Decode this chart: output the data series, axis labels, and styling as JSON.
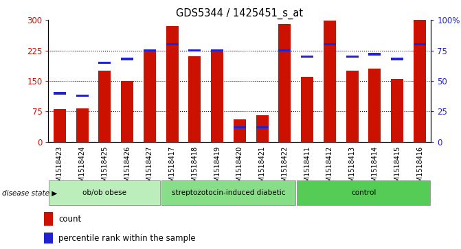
{
  "title": "GDS5344 / 1425451_s_at",
  "samples": [
    "GSM1518423",
    "GSM1518424",
    "GSM1518425",
    "GSM1518426",
    "GSM1518427",
    "GSM1518417",
    "GSM1518418",
    "GSM1518419",
    "GSM1518420",
    "GSM1518421",
    "GSM1518422",
    "GSM1518411",
    "GSM1518412",
    "GSM1518413",
    "GSM1518414",
    "GSM1518415",
    "GSM1518416"
  ],
  "counts": [
    80,
    82,
    175,
    150,
    227,
    285,
    210,
    225,
    55,
    65,
    290,
    160,
    298,
    175,
    180,
    155,
    300
  ],
  "percentiles": [
    40,
    38,
    65,
    68,
    75,
    80,
    75,
    75,
    12,
    12,
    75,
    70,
    80,
    70,
    72,
    68,
    80
  ],
  "groups": [
    {
      "label": "ob/ob obese",
      "start": 0,
      "end": 5,
      "color": "#bbeebb"
    },
    {
      "label": "streptozotocin-induced diabetic",
      "start": 5,
      "end": 11,
      "color": "#88dd88"
    },
    {
      "label": "control",
      "start": 11,
      "end": 17,
      "color": "#55cc55"
    }
  ],
  "bar_color": "#cc1100",
  "percentile_color": "#2222cc",
  "ylim_left": [
    0,
    300
  ],
  "ylim_right": [
    0,
    100
  ],
  "yticks_left": [
    0,
    75,
    150,
    225,
    300
  ],
  "ytick_labels_left": [
    "0",
    "75",
    "150",
    "225",
    "300"
  ],
  "yticks_right": [
    0,
    25,
    50,
    75,
    100
  ],
  "ytick_labels_right": [
    "0",
    "25",
    "50",
    "75",
    "100%"
  ],
  "grid_values": [
    75,
    150,
    225
  ],
  "bar_width": 0.55,
  "tick_bg_color": "#cccccc",
  "fig_bg_color": "#ffffff"
}
